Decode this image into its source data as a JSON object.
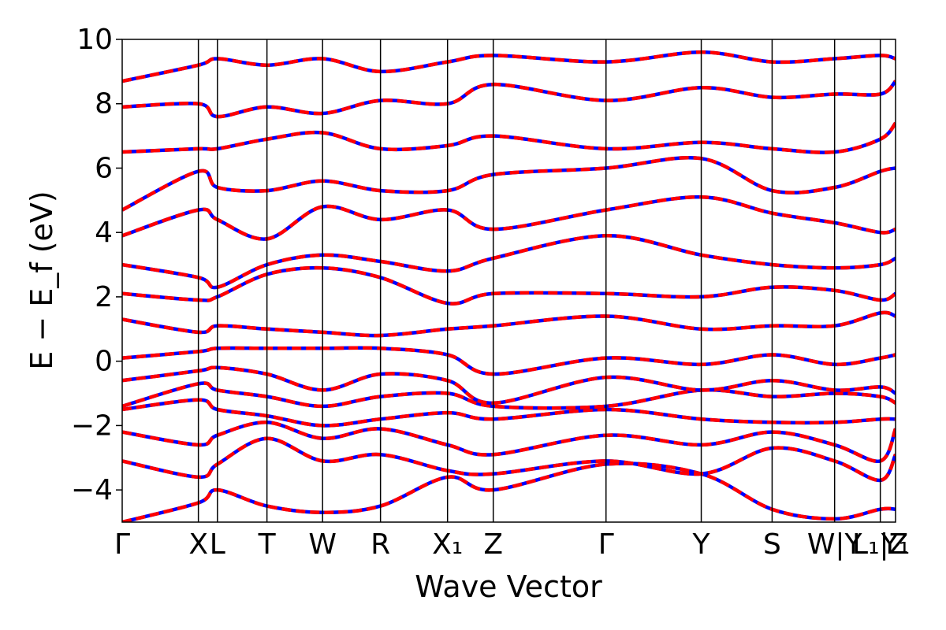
{
  "chart_data": {
    "type": "line",
    "title": "",
    "xlabel": "Wave Vector",
    "ylabel": "E − E_f (eV)",
    "ylim": [
      -5,
      10
    ],
    "grid": false,
    "legend": "none",
    "colors": {
      "band_primary": "#ff0000",
      "band_overlay": "#0000ff",
      "kpath_line": "#000000"
    },
    "y_ticks": [
      {
        "value": -4,
        "label": "−4"
      },
      {
        "value": -2,
        "label": "−2"
      },
      {
        "value": 0,
        "label": "0"
      },
      {
        "value": 2,
        "label": "2"
      },
      {
        "value": 4,
        "label": "4"
      },
      {
        "value": 6,
        "label": "6"
      },
      {
        "value": 8,
        "label": "8"
      },
      {
        "value": 10,
        "label": "10"
      }
    ],
    "x_path": {
      "range": [
        0,
        10.15
      ],
      "points": [
        {
          "k": 0.0,
          "label": "Γ"
        },
        {
          "k": 1.0,
          "label": "X"
        },
        {
          "k": 1.25,
          "label": "L"
        },
        {
          "k": 1.9,
          "label": "T"
        },
        {
          "k": 2.63,
          "label": "W"
        },
        {
          "k": 3.39,
          "label": "R"
        },
        {
          "k": 4.27,
          "label": "X₁"
        },
        {
          "k": 4.87,
          "label": "Z"
        },
        {
          "k": 6.35,
          "label": "Γ"
        },
        {
          "k": 7.6,
          "label": "Y"
        },
        {
          "k": 8.53,
          "label": "S"
        },
        {
          "k": 9.35,
          "label": "W|Y"
        },
        {
          "k": 9.95,
          "label": "L₁|Z"
        },
        {
          "k": 10.15,
          "label": "Y₁"
        }
      ]
    },
    "bands_estimated": [
      {
        "name": "",
        "k": [
          0,
          1,
          1.25,
          1.9,
          2.63,
          3.39,
          4.27,
          4.87,
          6.35,
          7.6,
          8.53,
          9.35,
          9.95,
          10.15
        ],
        "E": [
          -5.0,
          -4.4,
          -4.0,
          -4.5,
          -4.7,
          -4.5,
          -3.6,
          -4.0,
          -3.2,
          -3.5,
          -4.6,
          -4.9,
          -4.6,
          -4.6
        ]
      },
      {
        "name": "",
        "k": [
          0,
          1,
          1.25,
          1.9,
          2.63,
          3.39,
          4.27,
          4.87,
          6.35,
          7.6,
          8.53,
          9.35,
          9.95,
          10.15
        ],
        "E": [
          -3.1,
          -3.6,
          -3.2,
          -2.4,
          -3.1,
          -2.9,
          -3.4,
          -3.5,
          -3.1,
          -3.5,
          -2.7,
          -3.1,
          -3.7,
          -2.9
        ]
      },
      {
        "name": "",
        "k": [
          0,
          1,
          1.25,
          1.9,
          2.63,
          3.39,
          4.27,
          4.87,
          6.35,
          7.6,
          8.53,
          9.35,
          9.95,
          10.15
        ],
        "E": [
          -2.2,
          -2.6,
          -2.3,
          -1.9,
          -2.4,
          -2.1,
          -2.6,
          -2.9,
          -2.3,
          -2.6,
          -2.2,
          -2.6,
          -3.1,
          -2.1
        ]
      },
      {
        "name": "",
        "k": [
          0,
          1,
          1.25,
          1.9,
          2.63,
          3.39,
          4.27,
          4.87,
          6.35,
          7.6,
          8.53,
          9.35,
          9.95,
          10.15
        ],
        "E": [
          -1.5,
          -1.2,
          -1.5,
          -1.7,
          -2.0,
          -1.8,
          -1.6,
          -1.8,
          -1.5,
          -1.8,
          -1.9,
          -1.9,
          -1.8,
          -1.8
        ]
      },
      {
        "name": "",
        "k": [
          0,
          1,
          1.25,
          1.9,
          2.63,
          3.39,
          4.27,
          4.87,
          6.35,
          7.6,
          8.53,
          9.35,
          9.95,
          10.15
        ],
        "E": [
          -1.4,
          -0.7,
          -0.9,
          -1.1,
          -1.4,
          -1.1,
          -1.0,
          -1.4,
          -1.4,
          -0.9,
          -1.1,
          -1.0,
          -1.1,
          -1.3
        ]
      },
      {
        "name": "",
        "k": [
          0,
          1,
          1.25,
          1.9,
          2.63,
          3.39,
          4.27,
          4.87,
          6.35,
          7.6,
          8.53,
          9.35,
          9.95,
          10.15
        ],
        "E": [
          -0.6,
          -0.3,
          -0.2,
          -0.4,
          -0.9,
          -0.4,
          -0.6,
          -1.3,
          -0.5,
          -0.9,
          -0.6,
          -0.9,
          -0.8,
          -1.0
        ]
      },
      {
        "name": "",
        "k": [
          0,
          1,
          1.25,
          1.9,
          2.63,
          3.39,
          4.27,
          4.87,
          6.35,
          7.6,
          8.53,
          9.35,
          9.95,
          10.15
        ],
        "E": [
          0.1,
          0.3,
          0.4,
          0.4,
          0.4,
          0.4,
          0.2,
          -0.4,
          0.1,
          -0.1,
          0.2,
          -0.1,
          0.1,
          0.2
        ]
      },
      {
        "name": "",
        "k": [
          0,
          1,
          1.25,
          1.9,
          2.63,
          3.39,
          4.27,
          4.87,
          6.35,
          7.6,
          8.53,
          9.35,
          9.95,
          10.15
        ],
        "E": [
          1.3,
          0.9,
          1.1,
          1.0,
          0.9,
          0.8,
          1.0,
          1.1,
          1.4,
          1.0,
          1.1,
          1.1,
          1.5,
          1.4
        ]
      },
      {
        "name": "",
        "k": [
          0,
          1,
          1.25,
          1.9,
          2.63,
          3.39,
          4.27,
          4.87,
          6.35,
          7.6,
          8.53,
          9.35,
          9.95,
          10.15
        ],
        "E": [
          2.1,
          1.9,
          2.0,
          2.7,
          2.9,
          2.6,
          1.8,
          2.1,
          2.1,
          2.0,
          2.3,
          2.2,
          1.9,
          2.1
        ]
      },
      {
        "name": "",
        "k": [
          0,
          1,
          1.25,
          1.9,
          2.63,
          3.39,
          4.27,
          4.87,
          6.35,
          7.6,
          8.53,
          9.35,
          9.95,
          10.15
        ],
        "E": [
          3.0,
          2.6,
          2.3,
          3.0,
          3.3,
          3.1,
          2.8,
          3.2,
          3.9,
          3.3,
          3.0,
          2.9,
          3.0,
          3.2
        ]
      },
      {
        "name": "",
        "k": [
          0,
          1,
          1.25,
          1.9,
          2.63,
          3.39,
          4.27,
          4.87,
          6.35,
          7.6,
          8.53,
          9.35,
          9.95,
          10.15
        ],
        "E": [
          3.9,
          4.7,
          4.4,
          3.8,
          4.8,
          4.4,
          4.7,
          4.1,
          4.7,
          5.1,
          4.6,
          4.3,
          4.0,
          4.1
        ]
      },
      {
        "name": "",
        "k": [
          0,
          1,
          1.25,
          1.9,
          2.63,
          3.39,
          4.27,
          4.87,
          6.35,
          7.6,
          8.53,
          9.35,
          9.95,
          10.15
        ],
        "E": [
          4.7,
          5.9,
          5.4,
          5.3,
          5.6,
          5.3,
          5.3,
          5.8,
          6.0,
          6.3,
          5.3,
          5.4,
          5.9,
          6.0
        ]
      },
      {
        "name": "",
        "k": [
          0,
          1,
          1.25,
          1.9,
          2.63,
          3.39,
          4.27,
          4.87,
          6.35,
          7.6,
          8.53,
          9.35,
          9.95,
          10.15
        ],
        "E": [
          6.5,
          6.6,
          6.6,
          6.9,
          7.1,
          6.6,
          6.7,
          7.0,
          6.6,
          6.8,
          6.6,
          6.5,
          6.9,
          7.4
        ]
      },
      {
        "name": "",
        "k": [
          0,
          1,
          1.25,
          1.9,
          2.63,
          3.39,
          4.27,
          4.87,
          6.35,
          7.6,
          8.53,
          9.35,
          9.95,
          10.15
        ],
        "E": [
          7.9,
          8.0,
          7.6,
          7.9,
          7.7,
          8.1,
          8.0,
          8.6,
          8.1,
          8.5,
          8.2,
          8.3,
          8.3,
          8.7
        ]
      },
      {
        "name": "",
        "k": [
          0,
          1,
          1.25,
          1.9,
          2.63,
          3.39,
          4.27,
          4.87,
          6.35,
          7.6,
          8.53,
          9.35,
          9.95,
          10.15
        ],
        "E": [
          8.7,
          9.2,
          9.4,
          9.2,
          9.4,
          9.0,
          9.3,
          9.5,
          9.3,
          9.6,
          9.3,
          9.4,
          9.5,
          9.4
        ]
      }
    ]
  }
}
